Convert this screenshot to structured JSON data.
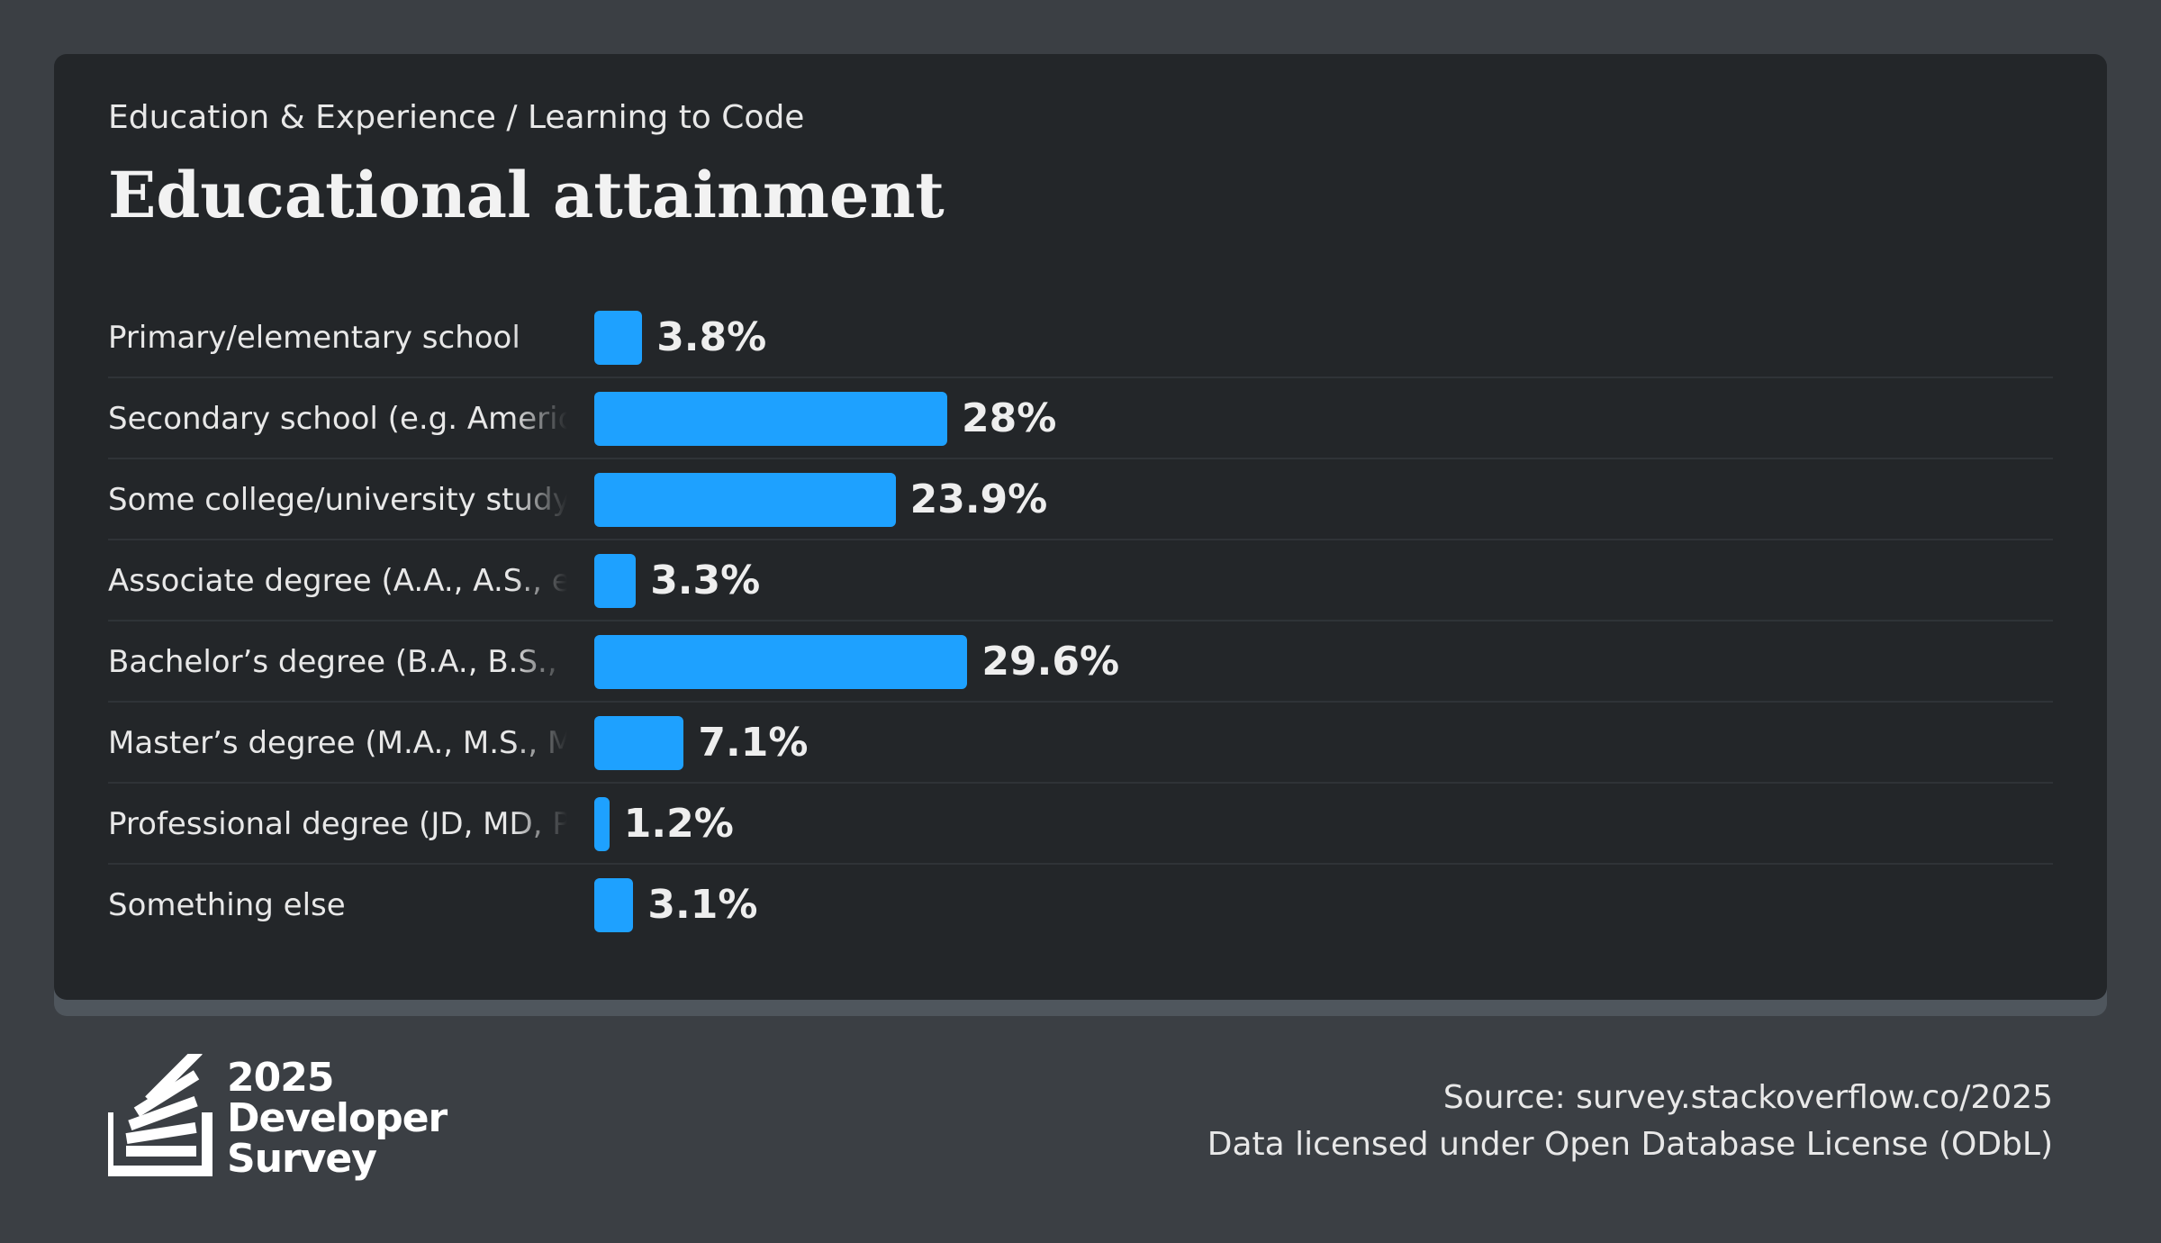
{
  "header": {
    "breadcrumb": "Education & Experience / Learning to Code",
    "title": "Educational attainment"
  },
  "chart_data": {
    "type": "bar",
    "orientation": "horizontal",
    "categories": [
      "Primary/elementary school",
      "Secondary school (e.g. American high school, German Realschule or Gymnasium, etc.)",
      "Some college/university study without earning a degree",
      "Associate degree (A.A., A.S., etc.)",
      "Bachelor’s degree (B.A., B.S., B.Eng., etc.)",
      "Master’s degree (M.A., M.S., M.Eng., MBA, etc.)",
      "Professional degree (JD, MD, Ph.D, Ed.D, etc.)",
      "Something else"
    ],
    "values": [
      3.8,
      28,
      23.9,
      3.3,
      29.6,
      7.1,
      1.2,
      3.1
    ],
    "value_labels": [
      "3.8%",
      "28%",
      "23.9%",
      "3.3%",
      "29.6%",
      "7.1%",
      "1.2%",
      "3.1%"
    ],
    "unit": "%",
    "xlim": [
      0,
      100
    ],
    "bar_color": "#1ea1ff"
  },
  "footer": {
    "logo": {
      "year": "2025",
      "line1": "Developer",
      "line2": "Survey"
    },
    "source": "Source: survey.stackoverflow.co/2025",
    "license": "Data licensed under Open Database License (ODbL)"
  },
  "colors": {
    "page_background": "#3b3f44",
    "card_background": "#232629",
    "accent": "#1ea1ff",
    "text": "#e8e8e8"
  }
}
